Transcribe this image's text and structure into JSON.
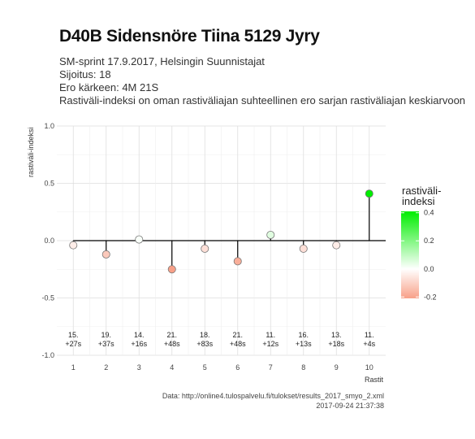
{
  "header": {
    "title": "D40B Sidensnöre Tiina 5129 Jyry",
    "subtitle_lines": [
      "SM-sprint 17.9.2017, Helsingin Suunnistajat",
      "Sijoitus: 18",
      "Ero kärkeen: 4M 21S",
      "Rastiväli-indeksi on oman rastiväliajan suhteellinen ero sarjan rastiväliajan keskiarvoon"
    ]
  },
  "footer": {
    "source": "Data: http://online4.tulospalvelu.fi/tulokset/results_2017_smyo_2.xml",
    "timestamp": "2017-09-24 21:37:38"
  },
  "legend": {
    "title_line1": "rastiväli-",
    "title_line2": "indeksi",
    "ticks": [
      "0.4",
      "0.2",
      "0.0",
      "-0.2"
    ],
    "tick_values": [
      0.4,
      0.2,
      0.0,
      -0.2
    ],
    "range": [
      -0.21,
      0.41
    ],
    "colors": {
      "low": "#f8a088",
      "mid": "#ffffff",
      "high": "#00ee00"
    }
  },
  "chart_data": {
    "type": "scatter",
    "xlabel": "Rastit",
    "ylabel": "rastiväli-indeksi",
    "x": [
      1,
      2,
      3,
      4,
      5,
      6,
      7,
      8,
      9,
      10
    ],
    "values": [
      -0.04,
      -0.12,
      0.01,
      -0.25,
      -0.07,
      -0.18,
      0.05,
      -0.07,
      -0.04,
      0.41
    ],
    "ranks": [
      "15.",
      "19.",
      "14.",
      "21.",
      "18.",
      "21.",
      "11.",
      "16.",
      "13.",
      "11."
    ],
    "diffs": [
      "+27s",
      "+37s",
      "+16s",
      "+48s",
      "+83s",
      "+48s",
      "+12s",
      "+13s",
      "+18s",
      "+4s"
    ],
    "xlim": [
      0.5,
      10.5
    ],
    "ylim": [
      -1.0,
      1.0
    ],
    "yticks": [
      "-1.0",
      "-0.5",
      "0.0",
      "0.5",
      "1.0"
    ],
    "ytick_values": [
      -1.0,
      -0.5,
      0.0,
      0.5,
      1.0
    ],
    "grid": true
  }
}
